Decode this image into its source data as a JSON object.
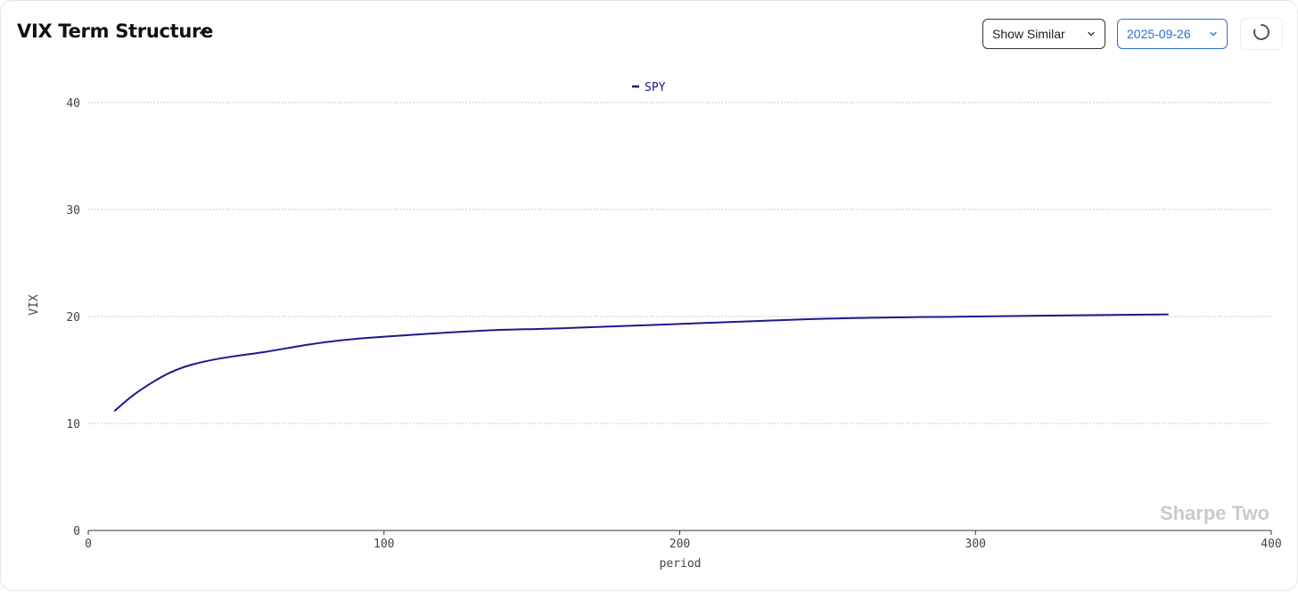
{
  "header": {
    "title": "VIX Term Structure",
    "similar_select_label": "Show Similar",
    "date_select_value": "2025-09-26"
  },
  "watermark": "Sharpe Two",
  "colors": {
    "series": "#1a1a8c",
    "accent": "#2b6fd1",
    "watermark": "#c7cbd1",
    "grid": "#bdbdbd",
    "axis_text": "#444444"
  },
  "icons": {
    "collapse": "chevron-up-icon",
    "dropdown": "chevron-down-icon",
    "refresh": "loading-spinner-icon"
  },
  "chart_data": {
    "type": "line",
    "title": "",
    "xlabel": "period",
    "ylabel": "VIX",
    "xlim": [
      0,
      400
    ],
    "ylim": [
      0,
      40
    ],
    "xticks": [
      0,
      100,
      200,
      300,
      400
    ],
    "yticks": [
      0,
      10,
      20,
      30,
      40
    ],
    "grid": "horizontal-dotted",
    "legend_position": "top-center",
    "series": [
      {
        "name": "SPY",
        "x": [
          9,
          15,
          22,
          28,
          35,
          45,
          60,
          75,
          90,
          110,
          135,
          160,
          200,
          250,
          300,
          365
        ],
        "y": [
          11.2,
          12.6,
          13.9,
          14.8,
          15.5,
          16.1,
          16.7,
          17.4,
          17.9,
          18.3,
          18.7,
          18.9,
          19.3,
          19.8,
          20.0,
          20.2
        ]
      }
    ]
  }
}
